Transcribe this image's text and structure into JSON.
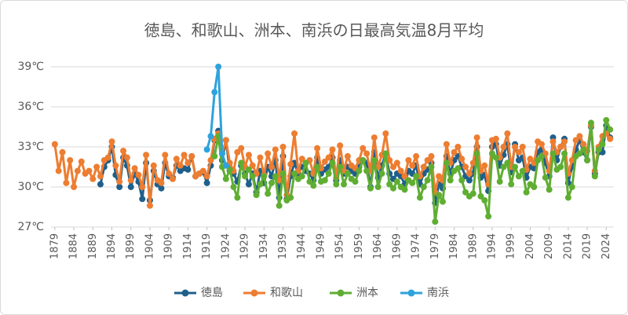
{
  "chart_data": {
    "type": "line",
    "title": "徳島、和歌山、洲本、南浜の日最高気温8月平均",
    "x": [
      1879,
      1880,
      1881,
      1882,
      1883,
      1884,
      1885,
      1886,
      1887,
      1888,
      1889,
      1890,
      1891,
      1892,
      1893,
      1894,
      1895,
      1896,
      1897,
      1898,
      1899,
      1900,
      1901,
      1902,
      1903,
      1904,
      1905,
      1906,
      1907,
      1908,
      1909,
      1910,
      1911,
      1912,
      1913,
      1914,
      1915,
      1916,
      1917,
      1918,
      1919,
      1920,
      1921,
      1922,
      1923,
      1924,
      1925,
      1926,
      1927,
      1928,
      1929,
      1930,
      1931,
      1932,
      1933,
      1934,
      1935,
      1936,
      1937,
      1938,
      1939,
      1940,
      1941,
      1942,
      1943,
      1944,
      1945,
      1946,
      1947,
      1948,
      1949,
      1950,
      1951,
      1952,
      1953,
      1954,
      1955,
      1956,
      1957,
      1958,
      1959,
      1960,
      1961,
      1962,
      1963,
      1964,
      1965,
      1966,
      1967,
      1968,
      1969,
      1970,
      1971,
      1972,
      1973,
      1974,
      1975,
      1976,
      1977,
      1978,
      1979,
      1980,
      1981,
      1982,
      1983,
      1984,
      1985,
      1986,
      1987,
      1988,
      1989,
      1990,
      1991,
      1992,
      1993,
      1994,
      1995,
      1996,
      1997,
      1998,
      1999,
      2000,
      2001,
      2002,
      2003,
      2004,
      2005,
      2006,
      2007,
      2008,
      2009,
      2010,
      2011,
      2012,
      2013,
      2014,
      2015,
      2016,
      2017,
      2018,
      2019,
      2020,
      2021,
      2022,
      2023,
      2024,
      2025
    ],
    "series": [
      {
        "name": "徳島",
        "color": "#1f5f8b",
        "values": [
          null,
          null,
          null,
          null,
          null,
          null,
          null,
          null,
          null,
          null,
          null,
          null,
          30.2,
          31.5,
          32.0,
          33.0,
          30.9,
          30.0,
          32.2,
          31.6,
          30.0,
          31.0,
          30.4,
          29.1,
          31.8,
          29.0,
          31.2,
          30.2,
          29.9,
          31.8,
          30.8,
          30.7,
          31.6,
          31.2,
          31.4,
          31.3,
          32.3,
          30.8,
          31.0,
          31.1,
          30.3,
          31.6,
          33.5,
          34.2,
          32.0,
          33.5,
          31.2,
          31.0,
          30.4,
          31.6,
          31.0,
          30.2,
          31.0,
          29.6,
          31.2,
          30.3,
          31.5,
          30.8,
          32.0,
          29.2,
          32.3,
          29.1,
          30.8,
          31.8,
          31.0,
          31.5,
          31.2,
          31.0,
          30.5,
          32.2,
          31.0,
          31.3,
          31.5,
          32.2,
          30.5,
          32.0,
          31.0,
          31.5,
          31.2,
          31.0,
          31.5,
          32.0,
          31.8,
          30.0,
          32.6,
          30.7,
          31.6,
          32.5,
          31.0,
          30.6,
          31.0,
          30.8,
          30.2,
          31.2,
          31.0,
          31.6,
          30.2,
          31.0,
          31.3,
          31.8,
          28.8,
          30.2,
          29.9,
          32.3,
          31.0,
          32.0,
          32.3,
          31.5,
          30.8,
          30.5,
          31.0,
          33.0,
          30.7,
          30.9,
          29.7,
          33.0,
          33.2,
          31.6,
          32.4,
          33.2,
          31.1,
          33.2,
          32.0,
          32.2,
          30.7,
          31.5,
          31.4,
          32.6,
          32.8,
          31.8,
          30.8,
          33.7,
          32.0,
          33.0,
          33.6,
          30.3,
          31.5,
          32.8,
          33.5,
          32.6,
          32.0,
          34.5,
          31.0,
          32.6,
          32.6,
          34.6,
          33.7
        ]
      },
      {
        "name": "和歌山",
        "color": "#ed7d31",
        "values": [
          33.2,
          31.2,
          32.6,
          30.3,
          32.0,
          30.0,
          31.2,
          31.9,
          31.0,
          31.2,
          30.6,
          31.5,
          30.8,
          32.0,
          32.2,
          33.4,
          31.6,
          30.4,
          32.7,
          32.2,
          30.5,
          31.4,
          30.9,
          30.0,
          32.4,
          28.6,
          31.6,
          30.5,
          30.3,
          32.4,
          31.0,
          30.6,
          32.1,
          31.6,
          32.4,
          31.8,
          32.3,
          30.8,
          31.0,
          31.2,
          30.8,
          32.0,
          33.6,
          34.0,
          32.5,
          33.5,
          31.8,
          31.2,
          32.6,
          32.9,
          31.5,
          32.4,
          31.6,
          31.0,
          32.2,
          30.9,
          32.5,
          31.5,
          32.8,
          30.5,
          33.0,
          29.4,
          31.7,
          34.0,
          31.2,
          32.1,
          31.8,
          32.0,
          31.0,
          32.9,
          31.4,
          31.9,
          32.2,
          32.8,
          30.7,
          33.1,
          31.2,
          32.3,
          31.6,
          31.4,
          32.0,
          32.9,
          32.5,
          31.2,
          33.7,
          31.5,
          32.4,
          34.0,
          32.0,
          31.5,
          31.8,
          31.2,
          30.8,
          32.0,
          31.6,
          32.3,
          30.8,
          31.5,
          32.0,
          32.3,
          29.6,
          30.8,
          30.5,
          33.2,
          31.8,
          32.6,
          33.0,
          32.1,
          31.5,
          31.0,
          31.8,
          33.7,
          31.2,
          31.6,
          30.2,
          33.5,
          33.6,
          32.2,
          33.0,
          34.0,
          31.5,
          33.0,
          32.6,
          33.0,
          31.3,
          32.1,
          31.8,
          33.4,
          33.2,
          32.5,
          31.2,
          33.4,
          32.6,
          33.0,
          33.4,
          31.0,
          32.0,
          33.5,
          33.8,
          33.2,
          32.7,
          34.6,
          31.2,
          33.0,
          33.8,
          34.0,
          33.6
        ]
      },
      {
        "name": "洲本",
        "color": "#5fae32",
        "values": [
          null,
          null,
          null,
          null,
          null,
          null,
          null,
          null,
          null,
          null,
          null,
          null,
          null,
          null,
          null,
          null,
          null,
          null,
          null,
          null,
          null,
          null,
          null,
          null,
          null,
          null,
          null,
          null,
          null,
          null,
          null,
          null,
          null,
          null,
          null,
          null,
          null,
          null,
          null,
          null,
          null,
          null,
          32.3,
          33.8,
          31.5,
          30.6,
          31.3,
          30.0,
          29.2,
          31.8,
          30.8,
          31.3,
          30.8,
          29.4,
          30.2,
          30.8,
          29.5,
          30.3,
          30.8,
          28.6,
          31.0,
          29.0,
          29.2,
          31.0,
          30.6,
          30.8,
          31.8,
          30.4,
          30.1,
          31.5,
          30.4,
          30.5,
          31.0,
          31.8,
          30.2,
          31.5,
          30.2,
          31.0,
          30.6,
          30.4,
          31.2,
          32.0,
          31.2,
          29.9,
          32.0,
          30.0,
          31.0,
          32.5,
          30.2,
          29.9,
          30.4,
          30.0,
          29.8,
          30.5,
          30.3,
          30.8,
          29.2,
          30.0,
          30.5,
          31.5,
          27.4,
          29.4,
          28.9,
          31.8,
          30.5,
          31.2,
          31.4,
          30.5,
          29.6,
          29.3,
          29.5,
          32.5,
          29.3,
          29.0,
          27.8,
          32.5,
          32.2,
          30.4,
          31.5,
          31.8,
          30.2,
          31.5,
          30.8,
          31.2,
          29.6,
          30.2,
          30.0,
          32.0,
          32.3,
          30.7,
          29.8,
          32.5,
          31.3,
          31.5,
          32.5,
          29.2,
          30.0,
          32.3,
          32.5,
          32.8,
          32.0,
          34.8,
          30.8,
          32.8,
          33.2,
          35.0,
          34.3
        ]
      },
      {
        "name": "南浜",
        "color": "#2ea3dc",
        "values": [
          null,
          null,
          null,
          null,
          null,
          null,
          null,
          null,
          null,
          null,
          null,
          null,
          null,
          null,
          null,
          null,
          null,
          null,
          null,
          null,
          null,
          null,
          null,
          null,
          null,
          null,
          null,
          null,
          null,
          null,
          null,
          null,
          null,
          null,
          null,
          null,
          null,
          null,
          null,
          null,
          32.8,
          33.8,
          37.1,
          39.0,
          32.5,
          31.6,
          null,
          null,
          null,
          null,
          null,
          null,
          null,
          null,
          null,
          null,
          null,
          null,
          null,
          null,
          null,
          null,
          null,
          null,
          null,
          null,
          null,
          null,
          null,
          null,
          null,
          null,
          null,
          null,
          null,
          null,
          null,
          null,
          null,
          null,
          null,
          null,
          null,
          null,
          null,
          null,
          null,
          null,
          null,
          null,
          null,
          null,
          null,
          null,
          null,
          null,
          null,
          null,
          null,
          null,
          null,
          null,
          null,
          null,
          null,
          null,
          null,
          null,
          null,
          null,
          null,
          null,
          null,
          null,
          null,
          null,
          null,
          null,
          null,
          null,
          null,
          null,
          null,
          null,
          null,
          null,
          null,
          null,
          null,
          null,
          null,
          null,
          null,
          null,
          null,
          null,
          null,
          null,
          null,
          null,
          null,
          null,
          null,
          null,
          null,
          null,
          null
        ]
      }
    ],
    "xlim": [
      1878,
      2026
    ],
    "xticks": [
      1879,
      1884,
      1889,
      1894,
      1899,
      1904,
      1909,
      1914,
      1919,
      1924,
      1929,
      1934,
      1939,
      1944,
      1949,
      1954,
      1959,
      1964,
      1969,
      1974,
      1979,
      1984,
      1989,
      1994,
      1999,
      2004,
      2009,
      2014,
      2019,
      2024
    ],
    "ylim": [
      27,
      39
    ],
    "yticks": [
      {
        "value": 27,
        "label": "27℃"
      },
      {
        "value": 30,
        "label": "30℃"
      },
      {
        "value": 33,
        "label": "33℃"
      },
      {
        "value": 36,
        "label": "36℃"
      },
      {
        "value": 39,
        "label": "39℃"
      }
    ],
    "grid": true,
    "legend": "bottom"
  }
}
